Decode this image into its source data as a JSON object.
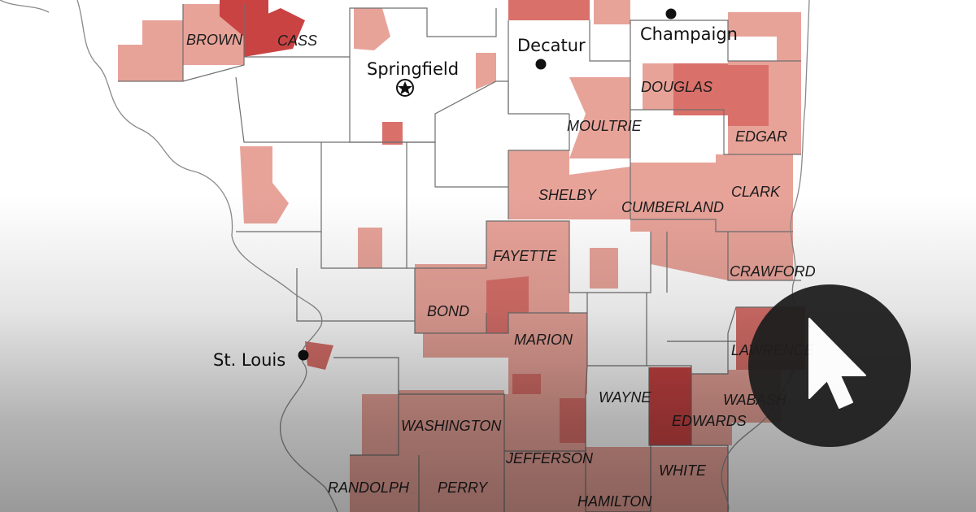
{
  "cities": {
    "springfield": "Springfield",
    "decatur": "Decatur",
    "champaign": "Champaign",
    "st_louis": "St. Louis"
  },
  "counties": {
    "brown": "BROWN",
    "cass": "CASS",
    "douglas": "DOUGLAS",
    "moultrie": "MOULTRIE",
    "edgar": "EDGAR",
    "shelby": "SHELBY",
    "cumberland": "CUMBERLAND",
    "clark": "CLARK",
    "fayette": "FAYETTE",
    "crawford": "CRAWFORD",
    "bond": "BOND",
    "marion": "MARION",
    "lawrence": "LAWRENCE",
    "wayne": "WAYNE",
    "wabash": "WABASH",
    "edwards": "EDWARDS",
    "washington": "WASHINGTON",
    "jefferson": "JEFFERSON",
    "white": "WHITE",
    "randolph": "RANDOLPH",
    "perry": "PERRY",
    "hamilton": "HAMILTON"
  },
  "colors": {
    "light": "#e8a399",
    "medium": "#d9706a",
    "dark": "#c94343",
    "badge": "#1f1f1f",
    "cursor": "#ffffff"
  },
  "icons": {
    "capital": "star-in-circle-icon",
    "city": "dot-icon",
    "pointer": "arrow-cursor-icon"
  }
}
